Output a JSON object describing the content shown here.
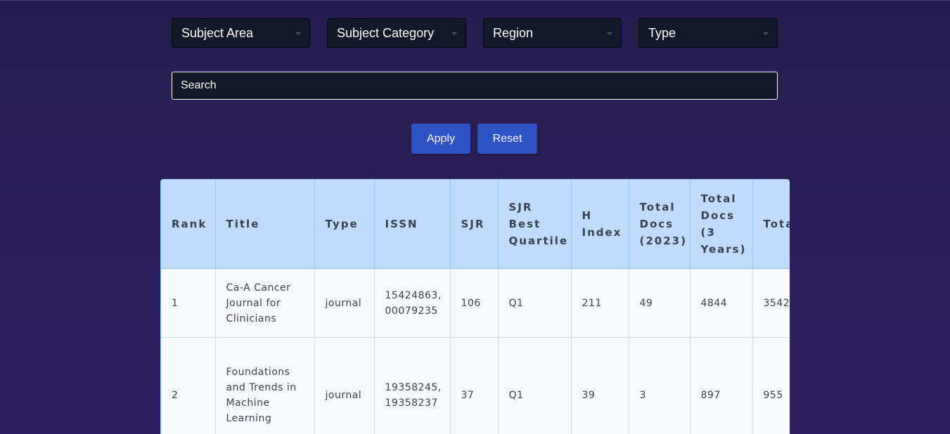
{
  "filters": {
    "subject_area": "Subject Area",
    "subject_category": "Subject Category",
    "region": "Region",
    "type": "Type"
  },
  "search": {
    "placeholder": "Search"
  },
  "actions": {
    "apply": "Apply",
    "reset": "Reset"
  },
  "table": {
    "columns": [
      "Rank",
      "Title",
      "Type",
      "ISSN",
      "SJR",
      "SJR Best Quartile",
      "H Index",
      "Total Docs (2023)",
      "Total Docs (3 Years)",
      "Total Refs"
    ],
    "rows": [
      {
        "rank": "1",
        "title": "Ca-A Cancer Journal for Clinicians",
        "type": "journal",
        "issn": "15424863, 00079235",
        "sjr": "106",
        "quartile": "Q1",
        "h_index": "211",
        "docs_2023": "49",
        "docs_3y": "4844",
        "total_refs": "3542"
      },
      {
        "rank": "2",
        "title": "Foundations and Trends in Machine Learning",
        "type": "journal",
        "issn": "19358245, 19358237",
        "sjr": "37",
        "quartile": "Q1",
        "h_index": "39",
        "docs_2023": "3",
        "docs_3y": "897",
        "total_refs": "955"
      }
    ]
  }
}
